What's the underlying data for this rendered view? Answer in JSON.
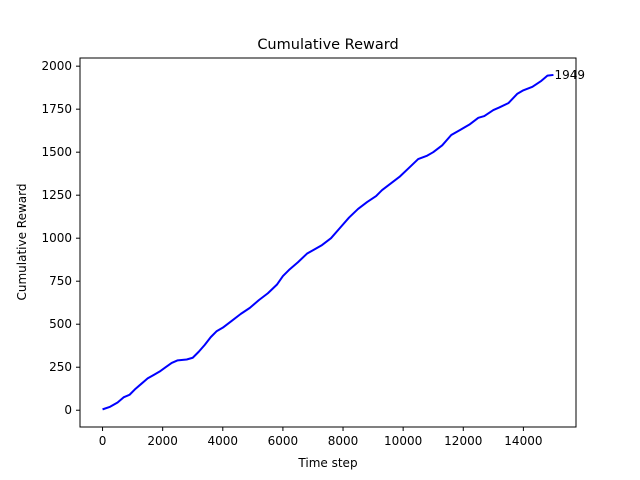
{
  "chart_data": {
    "type": "line",
    "title": "Cumulative Reward",
    "xlabel": "Time step",
    "ylabel": "Cumulative Reward",
    "xlim": [
      -750,
      15750
    ],
    "ylim": [
      -97.5,
      2047.5
    ],
    "xticks": [
      0,
      2000,
      4000,
      6000,
      8000,
      10000,
      12000,
      14000
    ],
    "yticks": [
      0,
      250,
      500,
      750,
      1000,
      1250,
      1500,
      1750,
      2000
    ],
    "grid": false,
    "series": [
      {
        "color": "#0000ff",
        "x": [
          0,
          250,
          500,
          700,
          900,
          1100,
          1300,
          1500,
          1700,
          1900,
          2100,
          2300,
          2500,
          2800,
          3000,
          3200,
          3400,
          3600,
          3800,
          4000,
          4300,
          4600,
          4900,
          5200,
          5500,
          5800,
          6000,
          6200,
          6500,
          6800,
          7000,
          7300,
          7600,
          7900,
          8200,
          8500,
          8800,
          9100,
          9300,
          9600,
          9900,
          10200,
          10500,
          10800,
          11000,
          11300,
          11600,
          11900,
          12200,
          12500,
          12700,
          13000,
          13200,
          13500,
          13800,
          14000,
          14300,
          14600,
          14800,
          15000
        ],
        "y": [
          5,
          20,
          45,
          75,
          90,
          125,
          155,
          185,
          205,
          225,
          250,
          275,
          290,
          295,
          305,
          340,
          380,
          425,
          460,
          480,
          520,
          560,
          595,
          640,
          680,
          730,
          780,
          815,
          860,
          910,
          930,
          960,
          1000,
          1060,
          1120,
          1170,
          1210,
          1245,
          1280,
          1320,
          1360,
          1410,
          1460,
          1480,
          1500,
          1540,
          1600,
          1630,
          1660,
          1700,
          1710,
          1745,
          1760,
          1785,
          1840,
          1860,
          1880,
          1915,
          1945,
          1949
        ]
      }
    ],
    "annotations": [
      {
        "text": "1949",
        "x": 15000,
        "y": 1949
      }
    ]
  }
}
